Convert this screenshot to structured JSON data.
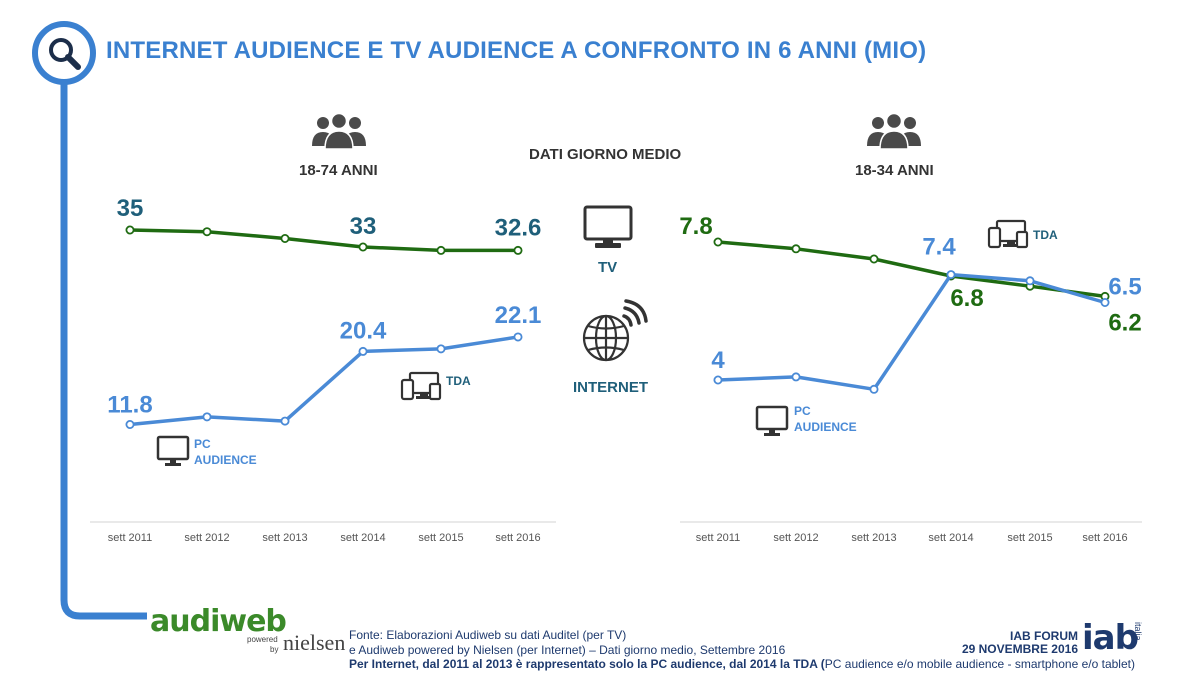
{
  "title": "INTERNET AUDIENCE E TV AUDIENCE A CONFRONTO IN 6 ANNI (MIO)",
  "center_label": "DATI GIORNO MEDIO",
  "tv_label": "TV",
  "internet_label": "INTERNET",
  "colors": {
    "accent": "#3a80d0",
    "tv": "#1f6b12",
    "internet": "#4a8ad6",
    "dark_teal": "#1f5f7a"
  },
  "icons": {
    "search": "search-icon",
    "people": "people-icon",
    "tv": "tv-icon",
    "globe": "globe-wifi-icon",
    "monitor": "monitor-icon",
    "devices": "devices-icon"
  },
  "chart_data": [
    {
      "type": "line",
      "subtitle": "18-74 ANNI",
      "categories": [
        "sett 2011",
        "sett 2012",
        "sett 2013",
        "sett 2014",
        "sett 2015",
        "sett 2016"
      ],
      "series": [
        {
          "name": "TV",
          "values": [
            35,
            34.8,
            34,
            33,
            32.6,
            32.6
          ],
          "labels": [
            "35",
            "",
            "",
            "33",
            "",
            "32.6"
          ]
        },
        {
          "name": "INTERNET",
          "values": [
            11.8,
            12.7,
            12.2,
            20.4,
            20.7,
            22.1
          ],
          "labels": [
            "11.8",
            "",
            "",
            "20.4",
            "",
            "22.1"
          ]
        }
      ],
      "annotations": {
        "pc": [
          "PC",
          "AUDIENCE"
        ],
        "tda": "TDA"
      }
    },
    {
      "type": "line",
      "subtitle": "18-34 ANNI",
      "categories": [
        "sett 2011",
        "sett 2012",
        "sett 2013",
        "sett 2014",
        "sett 2015",
        "sett 2016"
      ],
      "series": [
        {
          "name": "TV",
          "values": [
            7.8,
            7.6,
            7.3,
            6.8,
            6.5,
            6.2
          ],
          "labels": [
            "7.8",
            "",
            "",
            "6.8",
            "",
            "6.2"
          ]
        },
        {
          "name": "INTERNET",
          "values": [
            4,
            4.1,
            3.7,
            7.4,
            7.2,
            6.5
          ],
          "labels": [
            "4",
            "",
            "",
            "7.4",
            "",
            "6.5"
          ]
        }
      ],
      "annotations": {
        "pc": [
          "PC",
          "AUDIENCE"
        ],
        "tda": "TDA"
      }
    }
  ],
  "footer": {
    "logo": "audiweb",
    "logo_powered": "powered",
    "logo_by": "by",
    "logo_nielsen": "nielsen",
    "source_line1": "Fonte: Elaborazioni Audiweb su dati Auditel (per TV)",
    "source_line2": "e Audiweb powered by Nielsen (per Internet) – Dati giorno medio, Settembre 2016",
    "note_bold": "Per Internet, dal 2011 al 2013 è rappresentato solo la PC audience, dal 2014 la TDA (",
    "note_rest": "PC audience e/o mobile audience - smartphone e/o tablet)",
    "event": "IAB FORUM",
    "date": "29 NOVEMBRE 2016",
    "iab_logo": "iab",
    "iab_sub": "italia"
  }
}
